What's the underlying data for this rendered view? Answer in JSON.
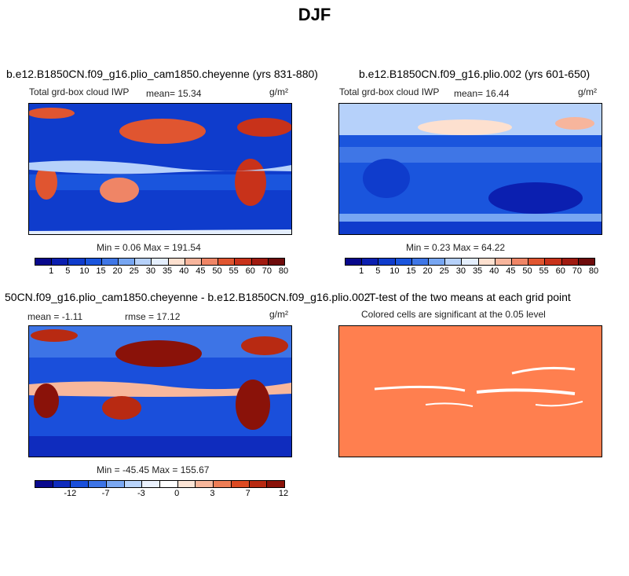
{
  "figure_title": "DJF",
  "colors": {
    "abs_scale": [
      "#08088c",
      "#0b1fb0",
      "#0f3ccc",
      "#1a55dd",
      "#3f76e6",
      "#77a6f2",
      "#b6d1fa",
      "#e4eefd",
      "#fde0cf",
      "#f7b59c",
      "#ef8566",
      "#e05530",
      "#c8321a",
      "#a01a10",
      "#6e0b0b"
    ],
    "diff_scale": [
      "#0a0a8e",
      "#0f2cbe",
      "#1a4fdb",
      "#3d74e6",
      "#7ba8f2",
      "#b9d4fb",
      "#eaf1fd",
      "#ffffff",
      "#fde5d6",
      "#f8b79b",
      "#ee7d55",
      "#dc4a22",
      "#b82a12",
      "#8a1209"
    ],
    "ttest": "#ff7f4f",
    "coast": "#101010"
  },
  "chart_data": [
    {
      "type": "heatmap",
      "title": "b.e12.B1850CN.f09_g16.plio_cam1850.cheyenne (yrs 831-880)",
      "left_label": "Total grd-box cloud IWP",
      "mean_label": "mean=  15.34",
      "units": "g/m²",
      "min_max": "Min =   0.06 Max = 191.54",
      "colorbar_ticks": [
        "1",
        "5",
        "10",
        "15",
        "20",
        "25",
        "30",
        "35",
        "40",
        "45",
        "50",
        "55",
        "60",
        "70",
        "80"
      ]
    },
    {
      "type": "heatmap",
      "title": "b.e12.B1850CN.f09_g16.plio.002 (yrs 601-650)",
      "left_label": "Total grd-box cloud IWP",
      "mean_label": "mean=  16.44",
      "units": "g/m²",
      "min_max": "Min =   0.23 Max =  64.22",
      "colorbar_ticks": [
        "1",
        "5",
        "10",
        "15",
        "20",
        "25",
        "30",
        "35",
        "40",
        "45",
        "50",
        "55",
        "60",
        "70",
        "80"
      ]
    },
    {
      "type": "heatmap",
      "title": "50CN.f09_g16.plio_cam1850.cheyenne - b.e12.B1850CN.f09_g16.plio.002",
      "mean_label": "mean =  -1.11",
      "rmse_label": "rmse =  17.12",
      "units": "g/m²",
      "min_max": "Min = -45.45 Max = 155.67",
      "colorbar_ticks": [
        "-12",
        "-7",
        "-3",
        "0",
        "3",
        "7",
        "12"
      ]
    },
    {
      "type": "heatmap",
      "title": "T-test of the two means at each grid point",
      "subtitle": "Colored cells are significant at the 0.05 level"
    }
  ]
}
